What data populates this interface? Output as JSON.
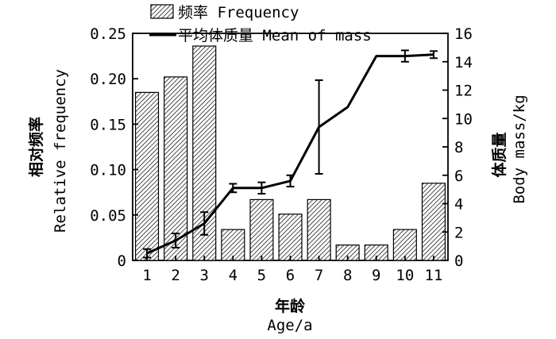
{
  "chart_data": {
    "type": "bar+line",
    "categories": [
      "1",
      "2",
      "3",
      "4",
      "5",
      "6",
      "7",
      "8",
      "9",
      "10",
      "11"
    ],
    "xlabel_cn": "年龄",
    "xlabel_en": "Age/a",
    "ylabel_left_cn": "相对频率",
    "ylabel_left_en": "Relative frequency",
    "ylabel_right_cn": "体质量",
    "ylabel_right_en": "Body mass/kg",
    "y_left_ticks": [
      "0",
      "0.05",
      "0.10",
      "0.15",
      "0.20",
      "0.25"
    ],
    "y_right_ticks": [
      "0",
      "2",
      "4",
      "6",
      "8",
      "10",
      "12",
      "14",
      "16"
    ],
    "ylim_left": [
      0,
      0.25
    ],
    "ylim_right": [
      0,
      16
    ],
    "series": [
      {
        "name": "频率 Frequency",
        "type": "bar",
        "axis": "left",
        "pattern": "hatched",
        "values": [
          0.185,
          0.202,
          0.236,
          0.034,
          0.067,
          0.051,
          0.067,
          0.017,
          0.017,
          0.034,
          0.085
        ]
      },
      {
        "name": "平均体质量 Mean of mass",
        "type": "line",
        "axis": "right",
        "values": [
          0.5,
          1.4,
          2.6,
          5.1,
          5.1,
          5.6,
          9.4,
          10.8,
          14.4,
          14.4,
          14.5
        ],
        "error": [
          0.3,
          0.5,
          0.8,
          0.3,
          0.4,
          0.4,
          3.3,
          0,
          0,
          0.4,
          0.25
        ]
      }
    ],
    "legend_position": "top"
  }
}
